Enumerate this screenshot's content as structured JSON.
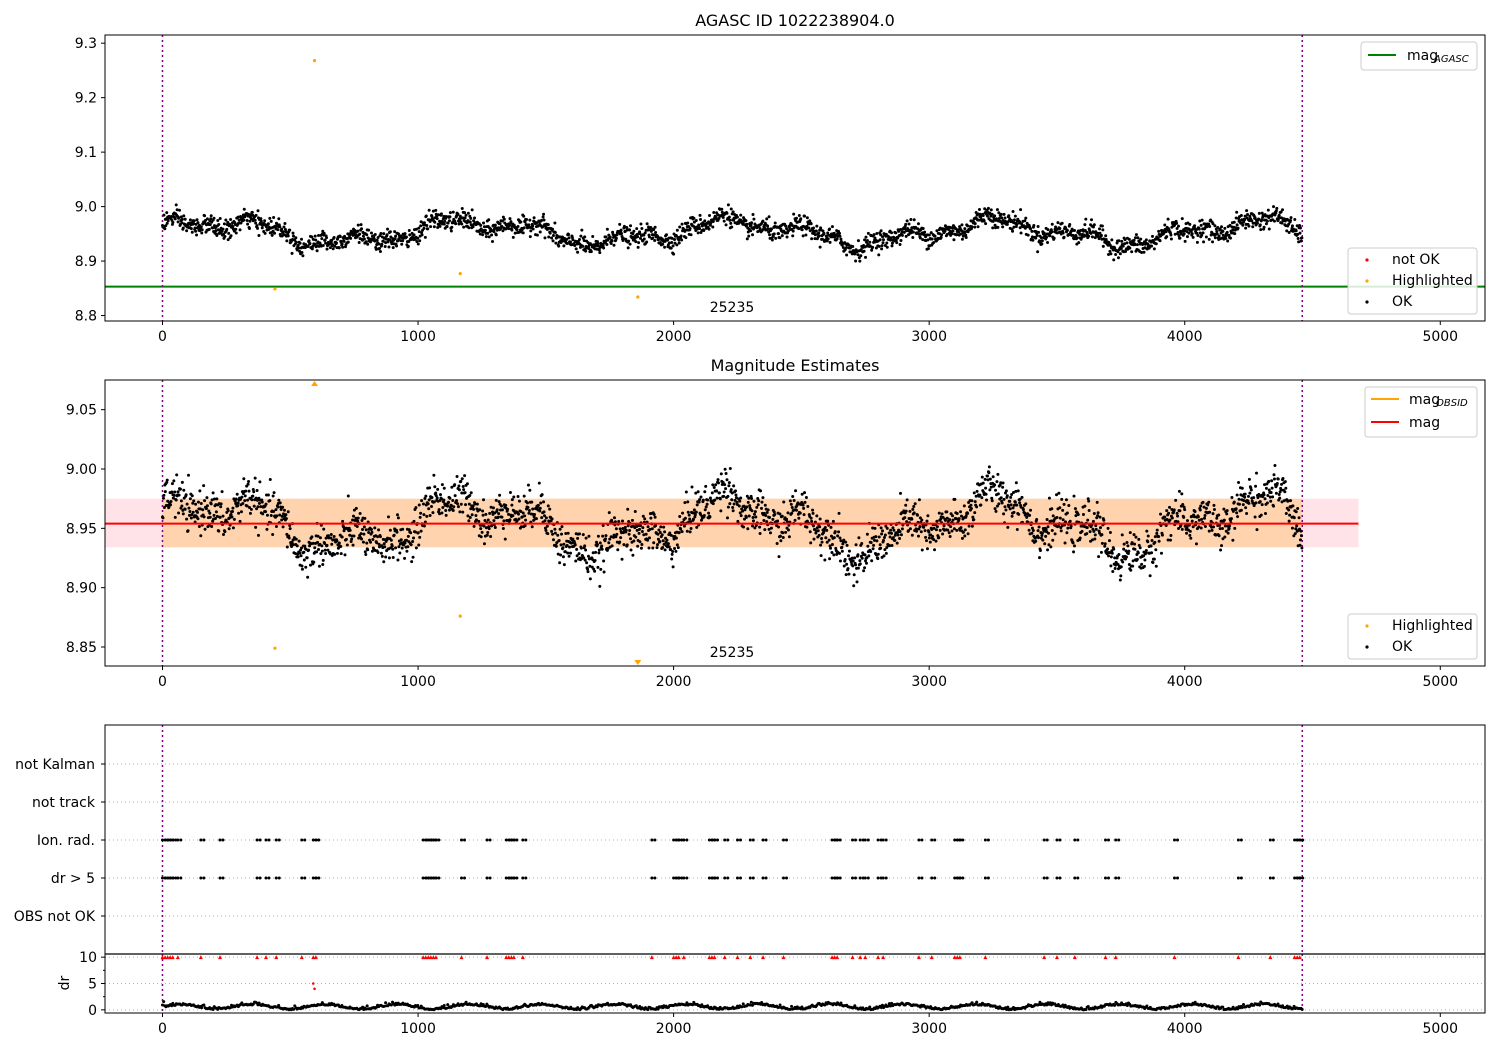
{
  "figure": {
    "panels": {
      "top": {
        "title": "AGASC ID 1022238904.0",
        "xticks": [
          "0",
          "1000",
          "2000",
          "3000",
          "4000",
          "5000"
        ],
        "yticks": [
          "8.8",
          "8.9",
          "9.0",
          "9.1",
          "9.2",
          "9.3"
        ],
        "annotation": "25235",
        "legend_lines": [
          {
            "label": "mag",
            "sub": "AGASC",
            "color": "#008000"
          }
        ],
        "legend_points": [
          {
            "label": "not OK",
            "color": "#ff0000"
          },
          {
            "label": "Highlighted",
            "color": "#ffa500"
          },
          {
            "label": "OK",
            "color": "#000000"
          }
        ]
      },
      "middle": {
        "title": "Magnitude Estimates",
        "xticks": [
          "0",
          "1000",
          "2000",
          "3000",
          "4000",
          "5000"
        ],
        "yticks": [
          "8.85",
          "8.90",
          "8.95",
          "9.00",
          "9.05"
        ],
        "annotation": "25235",
        "legend_lines": [
          {
            "label": "mag",
            "sub": "OBSID",
            "color": "#ffa500"
          },
          {
            "label": "mag",
            "sub": "",
            "color": "#ff0000"
          }
        ],
        "legend_points": [
          {
            "label": "Highlighted",
            "color": "#ffa500"
          },
          {
            "label": "OK",
            "color": "#000000"
          }
        ]
      },
      "flags": {
        "ylabels": [
          "not Kalman",
          "not track",
          "Ion. rad.",
          "dr > 5",
          "OBS not OK"
        ]
      },
      "dr": {
        "ylabel": "dr",
        "yticks": [
          "0",
          "5",
          "10"
        ],
        "xticks": [
          "0",
          "1000",
          "2000",
          "3000",
          "4000",
          "5000"
        ]
      }
    }
  },
  "chart_data": [
    {
      "type": "scatter",
      "title": "AGASC ID 1022238904.0",
      "xlabel": "",
      "ylabel": "",
      "xlim": [
        -225,
        5175
      ],
      "ylim": [
        8.79,
        9.315
      ],
      "grid": false,
      "legend": "top-right (lines), bottom-right (points)",
      "reference_lines": [
        {
          "name": "mag_AGASC",
          "y": 8.853,
          "color": "#008000"
        }
      ],
      "vertical_markers": [
        {
          "x": 0,
          "label": "25235"
        },
        {
          "x": 4460
        }
      ],
      "series": [
        {
          "name": "OK",
          "color": "#000000",
          "x_range": [
            0,
            4460
          ],
          "y_mean": 8.955,
          "y_spread": [
            8.91,
            9.01
          ],
          "n_points": 2400
        },
        {
          "name": "Highlighted",
          "color": "#ffa500",
          "points": [
            [
              595,
              9.268
            ],
            [
              440,
              8.849
            ],
            [
              1165,
              8.877
            ],
            [
              1860,
              8.834
            ]
          ]
        },
        {
          "name": "not OK",
          "color": "#ff0000",
          "points": []
        }
      ]
    },
    {
      "type": "scatter",
      "title": "Magnitude Estimates",
      "xlim": [
        -225,
        5175
      ],
      "ylim": [
        8.834,
        9.075
      ],
      "grid": false,
      "legend": "top-right (lines), bottom-right (points)",
      "reference_lines": [
        {
          "name": "mag",
          "y": 8.954,
          "band": [
            8.934,
            8.975
          ],
          "color": "#ff0000"
        },
        {
          "name": "mag_OBSID",
          "color": "#ffa500"
        }
      ],
      "vertical_markers": [
        {
          "x": 0,
          "label": "25235"
        },
        {
          "x": 4460
        }
      ],
      "series": [
        {
          "name": "OK",
          "color": "#000000",
          "x_range": [
            0,
            4460
          ],
          "y_mean": 8.955,
          "y_spread": [
            8.905,
            9.01
          ],
          "n_points": 2400
        },
        {
          "name": "Highlighted",
          "color": "#ffa500",
          "points": [
            [
              595,
              9.072
            ],
            [
              440,
              8.849
            ],
            [
              1165,
              8.876
            ],
            [
              1860,
              8.836
            ]
          ]
        }
      ]
    },
    {
      "type": "scatter",
      "title": "",
      "categories": [
        "not Kalman",
        "not track",
        "Ion. rad.",
        "dr > 5",
        "OBS not OK"
      ],
      "xlim": [
        -225,
        5175
      ],
      "grid": true,
      "series": [
        {
          "name": "Ion. rad.",
          "color": "#000000",
          "x": [
            0,
            10,
            20,
            30,
            40,
            60,
            150,
            225,
            370,
            405,
            445,
            545,
            590,
            600,
            1020,
            1030,
            1040,
            1050,
            1060,
            1070,
            1170,
            1270,
            1345,
            1355,
            1365,
            1375,
            1410,
            1915,
            2000,
            2010,
            2020,
            2040,
            2140,
            2150,
            2160,
            2200,
            2250,
            2300,
            2350,
            2430,
            2620,
            2630,
            2640,
            2700,
            2730,
            2750,
            2800,
            2820,
            2960,
            3010,
            3100,
            3110,
            3120,
            3220,
            3450,
            3500,
            3570,
            3690,
            3730,
            3960,
            4210,
            4335,
            4430,
            4440,
            4450
          ]
        },
        {
          "name": "dr > 5",
          "color": "#000000",
          "x": [
            0,
            10,
            20,
            30,
            40,
            60,
            150,
            225,
            370,
            405,
            445,
            545,
            590,
            600,
            1020,
            1030,
            1040,
            1050,
            1060,
            1070,
            1170,
            1270,
            1345,
            1355,
            1365,
            1375,
            1410,
            1915,
            2000,
            2010,
            2020,
            2040,
            2140,
            2150,
            2160,
            2200,
            2250,
            2300,
            2350,
            2430,
            2620,
            2630,
            2640,
            2700,
            2730,
            2750,
            2800,
            2820,
            2960,
            3010,
            3100,
            3110,
            3120,
            3220,
            3450,
            3500,
            3570,
            3690,
            3730,
            3960,
            4210,
            4335,
            4430,
            4440,
            4450
          ]
        }
      ]
    },
    {
      "type": "scatter",
      "title": "",
      "ylabel": "dr",
      "xlim": [
        -225,
        5175
      ],
      "ylim": [
        -0.6,
        10.6
      ],
      "grid": true,
      "series": [
        {
          "name": "dr",
          "color": "#000000",
          "x_range": [
            0,
            4460
          ],
          "y_range": [
            0,
            1.8
          ]
        },
        {
          "name": "dr clipped",
          "color": "#ff0000",
          "marker": "triangle",
          "y": 10
        },
        {
          "name": "dr outliers",
          "color": "#ff0000",
          "points": [
            [
              590,
              5.0
            ],
            [
              595,
              4.0
            ]
          ]
        }
      ]
    }
  ]
}
